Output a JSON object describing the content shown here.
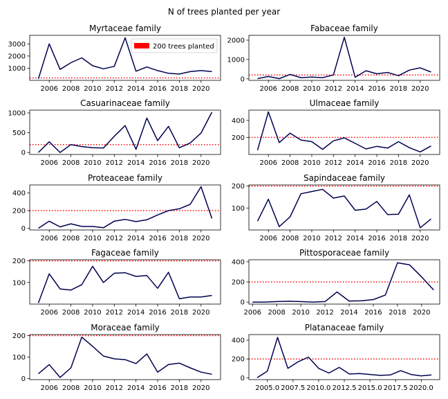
{
  "figure_title": "N of trees planted per year",
  "legend_label": "200 trees planted",
  "colors": {
    "series": "#000050",
    "threshold": "#ff0000",
    "legend_patch": "#ff0000"
  },
  "chart_data": [
    {
      "type": "line",
      "title": "Myrtaceae family",
      "x": [
        2005,
        2006,
        2007,
        2008,
        2009,
        2010,
        2011,
        2012,
        2013,
        2014,
        2015,
        2016,
        2017,
        2018,
        2019,
        2020,
        2021
      ],
      "values": [
        120,
        3000,
        900,
        1450,
        1850,
        1200,
        950,
        1150,
        3500,
        750,
        1100,
        800,
        580,
        520,
        720,
        800,
        720
      ],
      "threshold": 200,
      "xlim": [
        2004.2,
        2021.8
      ],
      "ylim": [
        0,
        3700
      ],
      "xticks": [
        2006,
        2008,
        2010,
        2012,
        2014,
        2016,
        2018,
        2020
      ],
      "xtick_labels": [
        "2006",
        "2008",
        "2010",
        "2012",
        "2014",
        "2016",
        "2018",
        "2020"
      ],
      "yticks": [
        1000,
        2000,
        3000
      ],
      "ytick_labels": [
        "1000",
        "2000",
        "3000"
      ],
      "legend": "top-right"
    },
    {
      "type": "line",
      "title": "Fabaceae family",
      "x": [
        2005,
        2006,
        2007,
        2008,
        2009,
        2010,
        2011,
        2012,
        2013,
        2014,
        2015,
        2016,
        2017,
        2018,
        2019,
        2020,
        2021
      ],
      "values": [
        10,
        120,
        10,
        230,
        60,
        90,
        60,
        200,
        2150,
        80,
        420,
        260,
        330,
        160,
        450,
        570,
        350
      ],
      "threshold": 200,
      "xlim": [
        2004.2,
        2021.8
      ],
      "ylim": [
        -80,
        2250
      ],
      "xticks": [
        2006,
        2008,
        2010,
        2012,
        2014,
        2016,
        2018,
        2020
      ],
      "xtick_labels": [
        "2006",
        "2008",
        "2010",
        "2012",
        "2014",
        "2016",
        "2018",
        "2020"
      ],
      "yticks": [
        0,
        1000,
        2000
      ],
      "ytick_labels": [
        "0",
        "1000",
        "2000"
      ]
    },
    {
      "type": "line",
      "title": "Casuarinaceae family",
      "x": [
        2005,
        2006,
        2007,
        2008,
        2009,
        2010,
        2011,
        2012,
        2013,
        2014,
        2015,
        2016,
        2017,
        2018,
        2019,
        2020,
        2021
      ],
      "values": [
        0,
        270,
        0,
        200,
        150,
        120,
        115,
        410,
        680,
        80,
        870,
        300,
        660,
        120,
        240,
        490,
        1020
      ],
      "threshold": 200,
      "xlim": [
        2004.2,
        2021.8
      ],
      "ylim": [
        -50,
        1070
      ],
      "xticks": [
        2006,
        2008,
        2010,
        2012,
        2014,
        2016,
        2018,
        2020
      ],
      "xtick_labels": [
        "2006",
        "2008",
        "2010",
        "2012",
        "2014",
        "2016",
        "2018",
        "2020"
      ],
      "yticks": [
        0,
        500,
        1000
      ],
      "ytick_labels": [
        "0",
        "500",
        "1000"
      ]
    },
    {
      "type": "line",
      "title": "Ulmaceae family",
      "x": [
        2005,
        2006,
        2007,
        2008,
        2009,
        2010,
        2011,
        2012,
        2013,
        2014,
        2015,
        2016,
        2017,
        2018,
        2019,
        2020,
        2021
      ],
      "values": [
        50,
        500,
        140,
        250,
        170,
        150,
        60,
        160,
        195,
        130,
        65,
        95,
        75,
        150,
        80,
        30,
        100
      ],
      "threshold": 200,
      "xlim": [
        2004.2,
        2021.8
      ],
      "ylim": [
        0,
        520
      ],
      "xticks": [
        2006,
        2008,
        2010,
        2012,
        2014,
        2016,
        2018,
        2020
      ],
      "xtick_labels": [
        "2006",
        "2008",
        "2010",
        "2012",
        "2014",
        "2016",
        "2018",
        "2020"
      ],
      "yticks": [
        200,
        400
      ],
      "ytick_labels": [
        "200",
        "400"
      ]
    },
    {
      "type": "line",
      "title": "Proteaceae family",
      "x": [
        2005,
        2006,
        2007,
        2008,
        2009,
        2010,
        2011,
        2012,
        2013,
        2014,
        2015,
        2016,
        2017,
        2018,
        2019,
        2020,
        2021
      ],
      "values": [
        0,
        80,
        15,
        50,
        20,
        20,
        5,
        80,
        100,
        75,
        95,
        150,
        200,
        220,
        270,
        470,
        110
      ],
      "threshold": 200,
      "xlim": [
        2004.2,
        2021.8
      ],
      "ylim": [
        -20,
        490
      ],
      "xticks": [
        2006,
        2008,
        2010,
        2012,
        2014,
        2016,
        2018,
        2020
      ],
      "xtick_labels": [
        "2006",
        "2008",
        "2010",
        "2012",
        "2014",
        "2016",
        "2018",
        "2020"
      ],
      "yticks": [
        0,
        200,
        400
      ],
      "ytick_labels": [
        "0",
        "200",
        "400"
      ]
    },
    {
      "type": "line",
      "title": "Sapindaceae family",
      "x": [
        2005,
        2006,
        2007,
        2008,
        2009,
        2010,
        2011,
        2012,
        2013,
        2014,
        2015,
        2016,
        2017,
        2018,
        2019,
        2020,
        2021
      ],
      "values": [
        40,
        140,
        15,
        60,
        165,
        175,
        185,
        145,
        155,
        90,
        95,
        130,
        70,
        72,
        160,
        10,
        50
      ],
      "threshold": 200,
      "xlim": [
        2004.2,
        2021.8
      ],
      "ylim": [
        0,
        205
      ],
      "xticks": [
        2006,
        2008,
        2010,
        2012,
        2014,
        2016,
        2018,
        2020
      ],
      "xtick_labels": [
        "2006",
        "2008",
        "2010",
        "2012",
        "2014",
        "2016",
        "2018",
        "2020"
      ],
      "yticks": [
        100,
        200
      ],
      "ytick_labels": [
        "100",
        "200"
      ]
    },
    {
      "type": "line",
      "title": "Fagaceae family",
      "x": [
        2005,
        2006,
        2007,
        2008,
        2009,
        2010,
        2011,
        2012,
        2013,
        2014,
        2015,
        2016,
        2017,
        2018,
        2019,
        2020,
        2021
      ],
      "values": [
        5,
        140,
        70,
        65,
        90,
        175,
        100,
        143,
        145,
        128,
        132,
        73,
        147,
        25,
        33,
        33,
        40
      ],
      "threshold": 200,
      "xlim": [
        2004.2,
        2021.8
      ],
      "ylim": [
        0,
        205
      ],
      "xticks": [
        2006,
        2008,
        2010,
        2012,
        2014,
        2016,
        2018,
        2020
      ],
      "xtick_labels": [
        "2006",
        "2008",
        "2010",
        "2012",
        "2014",
        "2016",
        "2018",
        "2020"
      ],
      "yticks": [
        100,
        200
      ],
      "ytick_labels": [
        "100",
        "200"
      ]
    },
    {
      "type": "line",
      "title": "Pittosporaceae family",
      "x": [
        2006,
        2007,
        2008,
        2009,
        2010,
        2011,
        2012,
        2013,
        2014,
        2015,
        2016,
        2017,
        2018,
        2019,
        2020,
        2021
      ],
      "values": [
        0,
        0,
        5,
        8,
        5,
        0,
        5,
        100,
        10,
        12,
        25,
        70,
        390,
        370,
        250,
        120
      ],
      "threshold": 200,
      "xlim": [
        2005.7,
        2021.5
      ],
      "ylim": [
        -20,
        420
      ],
      "xticks": [
        2006,
        2008,
        2010,
        2012,
        2014,
        2016,
        2018,
        2020
      ],
      "xtick_labels": [
        "2006",
        "2008",
        "2010",
        "2012",
        "2014",
        "2016",
        "2018",
        "2020"
      ],
      "yticks": [
        0,
        200,
        400
      ],
      "ytick_labels": [
        "0",
        "200",
        "400"
      ]
    },
    {
      "type": "line",
      "title": "Moraceae family",
      "x": [
        2005,
        2006,
        2007,
        2008,
        2009,
        2010,
        2011,
        2012,
        2013,
        2014,
        2015,
        2016,
        2017,
        2018,
        2019,
        2020,
        2021
      ],
      "values": [
        22,
        65,
        5,
        50,
        193,
        150,
        105,
        92,
        88,
        70,
        115,
        30,
        65,
        72,
        50,
        30,
        20
      ],
      "threshold": 200,
      "xlim": [
        2004.2,
        2021.8
      ],
      "ylim": [
        -5,
        205
      ],
      "xticks": [
        2006,
        2008,
        2010,
        2012,
        2014,
        2016,
        2018,
        2020
      ],
      "xtick_labels": [
        "2006",
        "2008",
        "2010",
        "2012",
        "2014",
        "2016",
        "2018",
        "2020"
      ],
      "yticks": [
        0,
        100,
        200
      ],
      "ytick_labels": [
        "0",
        "100",
        "200"
      ]
    },
    {
      "type": "line",
      "title": "Platanaceae family",
      "x": [
        2004.0,
        2005.0,
        2006.0,
        2007.0,
        2008.0,
        2009.0,
        2010.0,
        2011.0,
        2012.0,
        2013.0,
        2014.0,
        2015.0,
        2016.0,
        2017.0,
        2018.0,
        2019.0,
        2020.0,
        2021.0
      ],
      "values": [
        0,
        70,
        430,
        100,
        170,
        220,
        100,
        50,
        110,
        40,
        45,
        35,
        25,
        30,
        75,
        35,
        20,
        30
      ],
      "threshold": 200,
      "xlim": [
        2003.2,
        2021.8
      ],
      "ylim": [
        -20,
        460
      ],
      "xticks": [
        2005.0,
        2007.5,
        2010.0,
        2012.5,
        2015.0,
        2017.5,
        2020.0
      ],
      "xtick_labels": [
        "2005.0",
        "2007.5",
        "2010.0",
        "2012.5",
        "2015.0",
        "2017.5",
        "2020.0"
      ],
      "yticks": [
        0,
        200,
        400
      ],
      "ytick_labels": [
        "0",
        "200",
        "400"
      ]
    }
  ]
}
